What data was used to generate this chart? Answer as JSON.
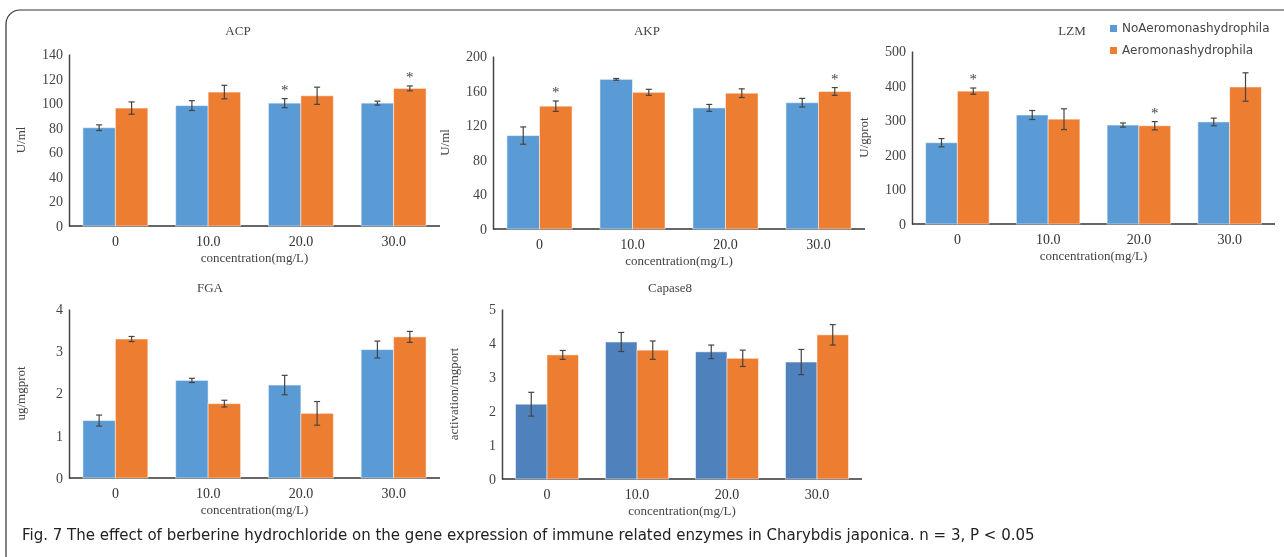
{
  "chart_data": [
    {
      "type": "bar",
      "title": "ACP",
      "xlabel": "concentration(mg/L)",
      "ylabel": "U/ml",
      "categories": [
        "0",
        "10.0",
        "20.0",
        "30.0"
      ],
      "ylim": [
        0,
        140
      ],
      "yticks": [
        0,
        20,
        40,
        60,
        80,
        100,
        120,
        140
      ],
      "grid": false,
      "legend": false,
      "series": [
        {
          "color": "#5b9bd5",
          "values": [
            80,
            98,
            100,
            100
          ],
          "errors": [
            2.3,
            4,
            3.7,
            1.6
          ]
        },
        {
          "color": "#ed7d31",
          "values": [
            96,
            109,
            106,
            112
          ],
          "errors": [
            5,
            5.5,
            7,
            2
          ]
        }
      ],
      "annotations": [
        {
          "text": "*",
          "x": "20.0",
          "y": 100
        },
        {
          "text": "*",
          "x": "30.0",
          "y": 112
        }
      ]
    },
    {
      "type": "bar",
      "title": "AKP",
      "xlabel": "concentration(mg/L)",
      "ylabel": "U/ml",
      "categories": [
        "0",
        "10.0",
        "20.0",
        "30.0"
      ],
      "ylim": [
        0,
        200
      ],
      "yticks": [
        0,
        40,
        80,
        120,
        160,
        200
      ],
      "grid": false,
      "legend": false,
      "series": [
        {
          "color": "#5b9bd5",
          "values": [
            108,
            173,
            140,
            146
          ],
          "errors": [
            10,
            1,
            4,
            5
          ]
        },
        {
          "color": "#ed7d31",
          "values": [
            142,
            158,
            157,
            159
          ],
          "errors": [
            6,
            3.5,
            5,
            4.5
          ]
        }
      ],
      "annotations": [
        {
          "text": "*",
          "x": "0",
          "y": 142
        },
        {
          "text": "*",
          "x": "30.0",
          "y": 159
        }
      ]
    },
    {
      "type": "bar",
      "title": "LZM",
      "xlabel": "concentration(mg/L)",
      "ylabel": "U/gprot",
      "categories": [
        "0",
        "10.0",
        "20.0",
        "30.0"
      ],
      "ylim": [
        0,
        500
      ],
      "yticks": [
        0,
        100,
        200,
        300,
        400,
        500
      ],
      "grid": false,
      "legend": "top right",
      "series": [
        {
          "name": "NoAeromonashydrophila",
          "color": "#5b9bd5",
          "values": [
            235,
            315,
            286,
            295
          ],
          "errors": [
            12,
            13,
            6,
            11
          ]
        },
        {
          "name": "Aeromonashydrophila",
          "color": "#ed7d31",
          "values": [
            384,
            303,
            284,
            396
          ],
          "errors": [
            9,
            30,
            12,
            41
          ]
        }
      ],
      "annotations": [
        {
          "text": "*",
          "x": "0",
          "y": 384
        },
        {
          "text": "*",
          "x": "20.0",
          "y": 284
        }
      ]
    },
    {
      "type": "bar",
      "title": "FGA",
      "xlabel": "concentration(mg/L)",
      "ylabel": "ug/mgprot",
      "categories": [
        "0",
        "10.0",
        "20.0",
        "30.0"
      ],
      "ylim": [
        0,
        4
      ],
      "yticks": [
        0,
        1,
        2,
        3,
        4
      ],
      "grid": false,
      "legend": false,
      "series": [
        {
          "color": "#5b9bd5",
          "values": [
            1.36,
            2.31,
            2.2,
            3.04
          ],
          "errors": [
            0.13,
            0.05,
            0.23,
            0.2
          ]
        },
        {
          "color": "#ed7d31",
          "values": [
            3.29,
            1.76,
            1.53,
            3.34
          ],
          "errors": [
            0.06,
            0.08,
            0.28,
            0.13
          ]
        }
      ]
    },
    {
      "type": "bar",
      "title": "Capase8",
      "xlabel": "concentration(mg/L)",
      "ylabel": "activation/mgport",
      "categories": [
        "0",
        "10.0",
        "20.0",
        "30.0"
      ],
      "ylim": [
        0,
        5
      ],
      "yticks": [
        0,
        1,
        2,
        3,
        4,
        5
      ],
      "grid": false,
      "legend": false,
      "series": [
        {
          "color": "#4f81bd",
          "values": [
            2.2,
            4.03,
            3.74,
            3.44
          ],
          "errors": [
            0.35,
            0.28,
            0.2,
            0.37
          ]
        },
        {
          "color": "#ed7d31",
          "values": [
            3.65,
            3.79,
            3.55,
            4.24
          ],
          "errors": [
            0.13,
            0.27,
            0.24,
            0.3
          ]
        }
      ],
      "annotations": [
        "Fig. 7  The effect of berberine hydrochloride on the gene expression of immune related enzymes in Charybdis japonica. n = 3, P < 0.05"
      ]
    }
  ]
}
